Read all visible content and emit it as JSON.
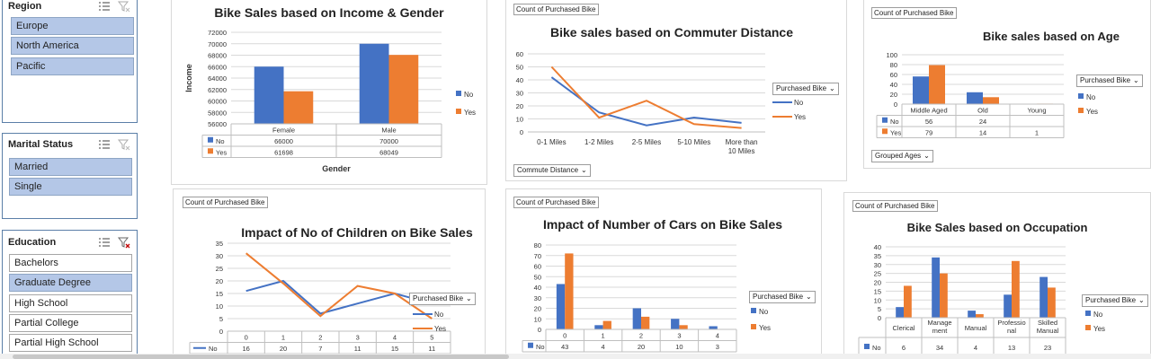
{
  "colors": {
    "no": "#4472c4",
    "yes": "#ed7d31",
    "selected": "#b4c7e7",
    "slicer_border": "#5b7fa8"
  },
  "slicers": {
    "region": {
      "title": "Region",
      "items": [
        {
          "label": "Europe",
          "selected": true
        },
        {
          "label": "North America",
          "selected": true
        },
        {
          "label": "Pacific",
          "selected": true
        }
      ]
    },
    "marital": {
      "title": "Marital Status",
      "items": [
        {
          "label": "Married",
          "selected": true
        },
        {
          "label": "Single",
          "selected": true
        }
      ]
    },
    "education": {
      "title": "Education",
      "items": [
        {
          "label": "Bachelors",
          "selected": false
        },
        {
          "label": "Graduate Degree",
          "selected": true
        },
        {
          "label": "High School",
          "selected": false
        },
        {
          "label": "Partial College",
          "selected": false
        },
        {
          "label": "Partial High School",
          "selected": false
        }
      ]
    }
  },
  "common": {
    "count_field": "Count of Purchased Bike",
    "legend_filter": "Purchased Bike",
    "legend_no": "No",
    "legend_yes": "Yes"
  },
  "chart_data": [
    {
      "id": "income_gender",
      "type": "bar",
      "title": "Bike Sales based on Income & Gender",
      "xlabel": "Gender",
      "ylabel": "Income",
      "ylim": [
        56000,
        72000
      ],
      "yticks": [
        "72000",
        "70000",
        "68000",
        "66000",
        "64000",
        "62000",
        "60000",
        "58000",
        "56000"
      ],
      "categories": [
        "Female",
        "Male"
      ],
      "series": [
        {
          "name": "No",
          "values": [
            66000,
            70000
          ]
        },
        {
          "name": "Yes",
          "values": [
            61698,
            68049
          ]
        }
      ],
      "legend": "right",
      "grid": true
    },
    {
      "id": "commute",
      "type": "line",
      "title": "Bike sales based on Commuter Distance",
      "ylim": [
        0,
        60
      ],
      "yticks": [
        "60",
        "50",
        "40",
        "30",
        "20",
        "10",
        "0"
      ],
      "categories": [
        "0-1 Miles",
        "1-2 Miles",
        "2-5 Miles",
        "5-10 Miles",
        "More than 10 Miles"
      ],
      "category_lines": [
        [
          "0-1 Miles"
        ],
        [
          "1-2 Miles"
        ],
        [
          "2-5 Miles"
        ],
        [
          "5-10 Miles"
        ],
        [
          "More than",
          "10 Miles"
        ]
      ],
      "series": [
        {
          "name": "No",
          "values": [
            42,
            15,
            5,
            11,
            7
          ]
        },
        {
          "name": "Yes",
          "values": [
            50,
            11,
            24,
            6,
            3
          ]
        }
      ],
      "axis_field": "Commute Distance",
      "legend": "right",
      "grid": true
    },
    {
      "id": "age",
      "type": "bar",
      "title": "Bike sales based on Age",
      "ylim": [
        0,
        100
      ],
      "yticks": [
        "100",
        "80",
        "60",
        "40",
        "20",
        "0"
      ],
      "categories": [
        "Middle Aged",
        "Old",
        "Young"
      ],
      "series": [
        {
          "name": "No",
          "values": [
            56,
            24,
            null
          ],
          "labels": [
            "56",
            "24",
            ""
          ]
        },
        {
          "name": "Yes",
          "values": [
            79,
            14,
            1
          ],
          "labels": [
            "79",
            "14",
            "1"
          ]
        }
      ],
      "axis_field": "Grouped Ages",
      "legend": "right",
      "grid": true
    },
    {
      "id": "children",
      "type": "line",
      "title": "Impact of No of Children on Bike Sales",
      "ylim": [
        0,
        35
      ],
      "yticks": [
        "35",
        "30",
        "25",
        "20",
        "15",
        "10",
        "5",
        "0"
      ],
      "categories": [
        "0",
        "1",
        "2",
        "3",
        "4",
        "5"
      ],
      "series": [
        {
          "name": "No",
          "values": [
            16,
            20,
            7,
            11,
            15,
            11
          ],
          "labels": [
            "16",
            "20",
            "7",
            "11",
            "15",
            "11"
          ]
        },
        {
          "name": "Yes",
          "values": [
            31,
            19,
            6,
            18,
            15,
            5
          ]
        }
      ],
      "legend": "right",
      "grid": true
    },
    {
      "id": "cars",
      "type": "bar",
      "title": "Impact of Number of Cars on Bike Sales",
      "ylim": [
        0,
        80
      ],
      "yticks": [
        "80",
        "70",
        "60",
        "50",
        "40",
        "30",
        "20",
        "10",
        "0"
      ],
      "categories": [
        "0",
        "1",
        "2",
        "3",
        "4"
      ],
      "series": [
        {
          "name": "No",
          "values": [
            43,
            4,
            20,
            10,
            3
          ],
          "labels": [
            "43",
            "4",
            "20",
            "10",
            "3"
          ]
        },
        {
          "name": "Yes",
          "values": [
            72,
            8,
            12,
            4,
            0
          ]
        }
      ],
      "legend": "right",
      "grid": true
    },
    {
      "id": "occupation",
      "type": "bar",
      "title": "Bike Sales based on Occupation",
      "ylim": [
        0,
        40
      ],
      "yticks": [
        "40",
        "35",
        "30",
        "25",
        "20",
        "15",
        "10",
        "5",
        "0"
      ],
      "categories": [
        "Clerical",
        "Management",
        "Manual",
        "Professional",
        "Skilled Manual"
      ],
      "category_lines": [
        [
          "Clerical"
        ],
        [
          "Manage",
          "ment"
        ],
        [
          "Manual"
        ],
        [
          "Professio",
          "nal"
        ],
        [
          "Skilled",
          "Manual"
        ]
      ],
      "series": [
        {
          "name": "No",
          "values": [
            6,
            34,
            4,
            13,
            23
          ],
          "labels": [
            "6",
            "34",
            "4",
            "13",
            "23"
          ]
        },
        {
          "name": "Yes",
          "values": [
            18,
            25,
            2,
            32,
            17
          ]
        }
      ],
      "legend": "right",
      "grid": true
    }
  ]
}
